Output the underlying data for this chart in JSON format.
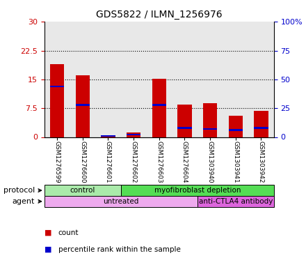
{
  "title": "GDS5822 / ILMN_1256976",
  "samples": [
    "GSM1276599",
    "GSM1276600",
    "GSM1276601",
    "GSM1276602",
    "GSM1276603",
    "GSM1276604",
    "GSM1303940",
    "GSM1303941",
    "GSM1303942"
  ],
  "count_values": [
    19.0,
    16.0,
    0.15,
    1.2,
    15.2,
    8.5,
    8.8,
    5.5,
    6.8
  ],
  "percentile_values": [
    44,
    28,
    1,
    2,
    28,
    8,
    7,
    6,
    8
  ],
  "ylim_left": [
    0,
    30
  ],
  "ylim_right": [
    0,
    100
  ],
  "yticks_left": [
    0,
    7.5,
    15,
    22.5,
    30
  ],
  "ytick_labels_left": [
    "0",
    "7.5",
    "15",
    "22.5",
    "30"
  ],
  "yticks_right": [
    0,
    25,
    50,
    75,
    100
  ],
  "ytick_labels_right": [
    "0",
    "25",
    "50",
    "75",
    "100%"
  ],
  "bar_color": "#cc0000",
  "percentile_color": "#0000cc",
  "grid_color": "#000000",
  "protocol_groups": [
    {
      "label": "control",
      "start": 0,
      "end": 3,
      "color": "#aaeaaa"
    },
    {
      "label": "myofibroblast depletion",
      "start": 3,
      "end": 9,
      "color": "#55dd55"
    }
  ],
  "agent_groups": [
    {
      "label": "untreated",
      "start": 0,
      "end": 6,
      "color": "#eeaaee"
    },
    {
      "label": "anti-CTLA4 antibody",
      "start": 6,
      "end": 9,
      "color": "#dd66dd"
    }
  ],
  "bar_width": 0.55,
  "background_color": "#e8e8e8"
}
